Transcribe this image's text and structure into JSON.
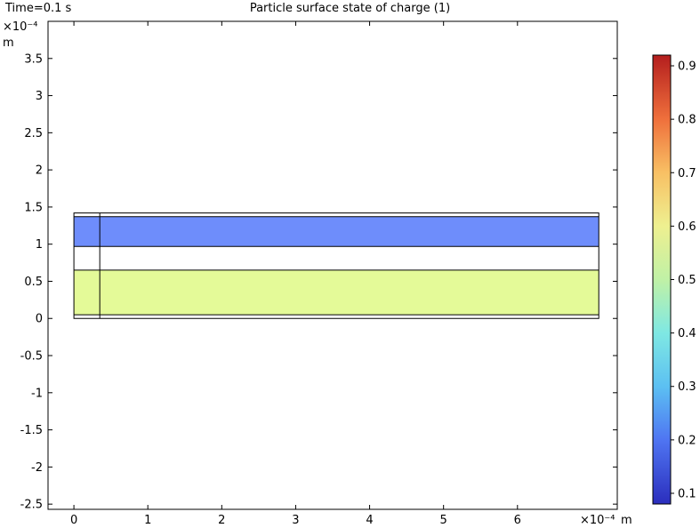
{
  "header": {
    "time_label": "Time=0.1 s",
    "title": "Particle surface state of charge (1)"
  },
  "chart_data": {
    "type": "heatmap",
    "title": "Particle surface state of charge (1)",
    "annotation": "Time=0.1 s",
    "x_axis": {
      "unit": "m",
      "multiplier": "×10⁻⁴",
      "range": [
        -0.35,
        7.35
      ],
      "ticks": [
        0,
        1,
        2,
        3,
        4,
        5,
        6
      ],
      "tick_labels": [
        "0",
        "1",
        "2",
        "3",
        "4",
        "5",
        "6"
      ]
    },
    "y_axis": {
      "unit": "m",
      "multiplier": "×10⁻⁴",
      "range": [
        -2.57,
        4.0
      ],
      "ticks": [
        -2.5,
        -2,
        -1.5,
        -1,
        -0.5,
        0,
        0.5,
        1,
        1.5,
        2,
        2.5,
        3,
        3.5
      ],
      "tick_labels": [
        "-2.5",
        "-2",
        "-1.5",
        "-1",
        "-0.5",
        "0",
        "0.5",
        "1",
        "1.5",
        "2",
        "2.5",
        "3",
        "3.5"
      ]
    },
    "geometry": {
      "outer_box": {
        "x": [
          0,
          7.1
        ],
        "y": [
          0,
          1.42
        ]
      },
      "internal_lines_y": [
        0.05,
        0.65,
        0.97,
        1.37
      ],
      "internal_line_x": 0.35,
      "regions": [
        {
          "x": [
            0,
            7.1
          ],
          "y": [
            0.05,
            0.65
          ],
          "value": 0.57,
          "color": "#e4fa98"
        },
        {
          "x": [
            0,
            7.1
          ],
          "y": [
            0.97,
            1.37
          ],
          "value": 0.21,
          "color": "#6e8dfb"
        }
      ]
    },
    "colorbar": {
      "range": [
        0.08,
        0.92
      ],
      "ticks": [
        0.1,
        0.2,
        0.3,
        0.4,
        0.5,
        0.6,
        0.7,
        0.8,
        0.9
      ],
      "tick_labels": [
        "0.1",
        "0.2",
        "0.3",
        "0.4",
        "0.5",
        "0.6",
        "0.7",
        "0.8",
        "0.9"
      ],
      "colormap": "rainbow",
      "stops": [
        {
          "v": 0.08,
          "color": "#2b2ebd"
        },
        {
          "v": 0.2,
          "color": "#4f75f2"
        },
        {
          "v": 0.3,
          "color": "#5cc0f2"
        },
        {
          "v": 0.4,
          "color": "#7fe8e3"
        },
        {
          "v": 0.5,
          "color": "#c0f1a6"
        },
        {
          "v": 0.6,
          "color": "#eef090"
        },
        {
          "v": 0.7,
          "color": "#f8c064"
        },
        {
          "v": 0.8,
          "color": "#ef703c"
        },
        {
          "v": 0.92,
          "color": "#b41e1e"
        }
      ]
    }
  }
}
